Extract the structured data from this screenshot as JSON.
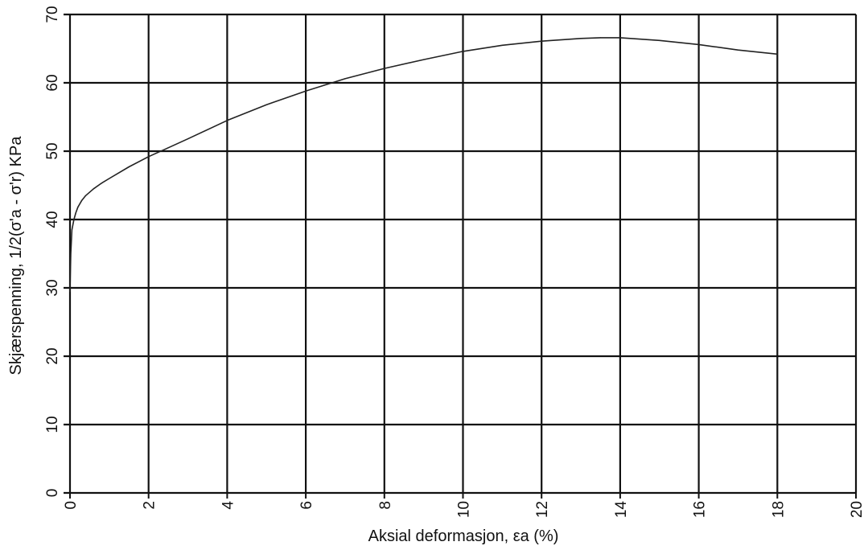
{
  "chart_data": {
    "type": "line",
    "title": "",
    "xlabel": "Aksial deformasjon, εa (%)",
    "ylabel": "Skjærspenning, 1/2(σ'a - σ'r) KPa",
    "xlim": [
      0,
      20
    ],
    "ylim": [
      0,
      70
    ],
    "x_ticks": [
      0,
      2,
      4,
      6,
      8,
      10,
      12,
      14,
      16,
      18,
      20
    ],
    "y_ticks": [
      0,
      10,
      20,
      30,
      40,
      50,
      60,
      70
    ],
    "x_tick_labels": [
      "0",
      "2",
      "4",
      "6",
      "8",
      "10",
      "12",
      "14",
      "16",
      "18",
      "20"
    ],
    "y_tick_labels": [
      "0",
      "10",
      "20",
      "30",
      "40",
      "50",
      "60",
      "70"
    ],
    "grid": true,
    "line_color": "#222222",
    "grid_color": "#111111",
    "series": [
      {
        "x": [
          0.0,
          0.02,
          0.05,
          0.1,
          0.15,
          0.2,
          0.3,
          0.4,
          0.6,
          0.8,
          1.0,
          1.5,
          2.0,
          2.5,
          3.0,
          4.0,
          5.0,
          6.0,
          7.0,
          8.0,
          9.0,
          10.0,
          11.0,
          12.0,
          13.0,
          13.5,
          14.0,
          15.0,
          16.0,
          17.0,
          18.0
        ],
        "y": [
          29.5,
          35.0,
          38.5,
          40.0,
          41.0,
          41.8,
          42.8,
          43.5,
          44.5,
          45.3,
          46.0,
          47.7,
          49.2,
          50.5,
          51.8,
          54.5,
          56.8,
          58.8,
          60.6,
          62.1,
          63.4,
          64.6,
          65.5,
          66.1,
          66.5,
          66.6,
          66.6,
          66.2,
          65.6,
          64.8,
          64.2
        ]
      }
    ]
  }
}
